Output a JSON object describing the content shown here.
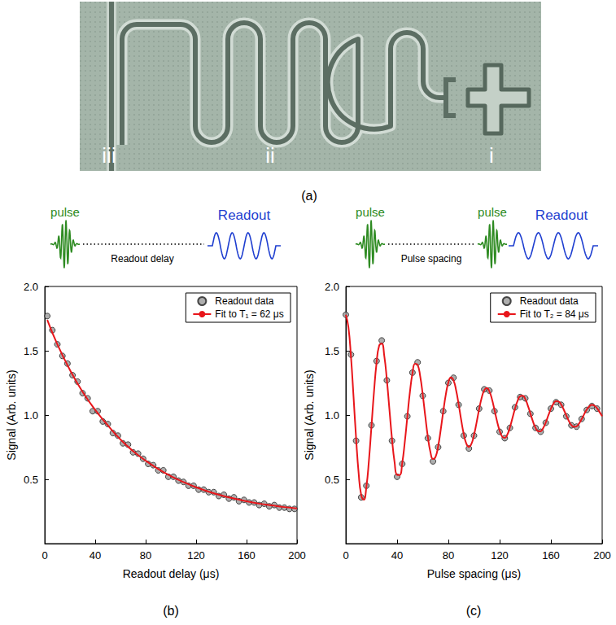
{
  "panel_a": {
    "labels": [
      "i",
      "ii",
      "iii"
    ],
    "caption": "(a)"
  },
  "chart_data": [
    {
      "type": "scatter",
      "panel": "(b)",
      "schematic": {
        "pulses": [
          "pulse"
        ],
        "gap": "Readout delay",
        "readout": "Readout"
      },
      "x_label": "Readout delay (μs)",
      "y_label": "Signal (Arb. units)",
      "xlim": [
        0,
        200
      ],
      "xticks": [
        0,
        40,
        80,
        120,
        160,
        200
      ],
      "ylim": [
        0,
        2
      ],
      "yticks": [
        0.5,
        {
          "value": 1,
          "label": "1.0"
        },
        1.5,
        {
          "value": 2,
          "label": "2.0"
        }
      ],
      "grid": false,
      "legend": "upper right",
      "series": [
        {
          "name": "Readout data",
          "type": "scatter",
          "marker": "circle",
          "color": "#9a9a9a",
          "x": [
            2,
            6,
            10,
            14,
            18,
            22,
            26,
            30,
            34,
            38,
            42,
            46,
            50,
            54,
            58,
            62,
            66,
            70,
            74,
            78,
            82,
            86,
            90,
            94,
            98,
            102,
            106,
            110,
            114,
            118,
            122,
            126,
            130,
            134,
            138,
            142,
            146,
            150,
            154,
            158,
            162,
            166,
            170,
            174,
            178,
            182,
            186,
            190,
            194,
            198
          ],
          "values": [
            1.77,
            1.66,
            1.55,
            1.46,
            1.4,
            1.31,
            1.26,
            1.17,
            1.13,
            1.03,
            1.03,
            0.95,
            0.93,
            0.86,
            0.84,
            0.78,
            0.77,
            0.71,
            0.7,
            0.66,
            0.62,
            0.61,
            0.57,
            0.57,
            0.52,
            0.52,
            0.49,
            0.48,
            0.45,
            0.45,
            0.42,
            0.42,
            0.4,
            0.4,
            0.37,
            0.38,
            0.35,
            0.36,
            0.33,
            0.34,
            0.32,
            0.32,
            0.3,
            0.31,
            0.29,
            0.3,
            0.28,
            0.28,
            0.27,
            0.27
          ]
        },
        {
          "name": "Fit to T₁ = 62 μs",
          "type": "line",
          "line_style": "solid",
          "color": "#e8161b",
          "x": [
            2,
            10,
            20,
            30,
            40,
            50,
            60,
            70,
            80,
            90,
            100,
            110,
            120,
            130,
            140,
            150,
            160,
            170,
            180,
            190,
            200
          ],
          "values": [
            1.74,
            1.55,
            1.35,
            1.18,
            1.04,
            0.92,
            0.81,
            0.72,
            0.645,
            0.58,
            0.525,
            0.479,
            0.438,
            0.404,
            0.375,
            0.351,
            0.329,
            0.311,
            0.297,
            0.284,
            0.274
          ]
        }
      ]
    },
    {
      "type": "scatter",
      "panel": "(c)",
      "schematic": {
        "pulses": [
          "pulse",
          "pulse"
        ],
        "gap": "Pulse spacing",
        "readout": "Readout"
      },
      "x_label": "Pulse spacing (μs)",
      "y_label": "Signal (Arb. units)",
      "xlim": [
        0,
        200
      ],
      "xticks": [
        0,
        40,
        80,
        120,
        160,
        200
      ],
      "ylim": [
        0,
        2
      ],
      "yticks": [
        0.5,
        {
          "value": 1,
          "label": "1.0"
        },
        1.5,
        {
          "value": 2,
          "label": "2.0"
        }
      ],
      "grid": false,
      "legend": "upper right",
      "series": [
        {
          "name": "Readout data",
          "type": "scatter",
          "marker": "circle",
          "color": "#9a9a9a",
          "x": [
            0,
            4,
            8,
            12,
            16,
            20,
            24,
            28,
            32,
            36,
            40,
            44,
            48,
            52,
            56,
            60,
            64,
            68,
            72,
            76,
            80,
            84,
            88,
            92,
            96,
            100,
            104,
            108,
            112,
            116,
            120,
            124,
            128,
            132,
            136,
            140,
            144,
            148,
            152,
            156,
            160,
            164,
            168,
            172,
            176,
            180,
            184,
            188,
            192,
            196
          ],
          "values": [
            1.78,
            1.47,
            0.8,
            0.36,
            0.45,
            0.92,
            1.42,
            1.58,
            1.27,
            0.8,
            0.52,
            0.62,
            0.99,
            1.33,
            1.41,
            1.15,
            0.82,
            0.64,
            0.75,
            1.03,
            1.25,
            1.29,
            1.08,
            0.84,
            0.74,
            0.84,
            1.05,
            1.2,
            1.19,
            1.03,
            0.87,
            0.82,
            0.9,
            1.06,
            1.14,
            1.13,
            1.01,
            0.9,
            0.87,
            0.94,
            1.05,
            1.1,
            1.08,
            0.99,
            0.92,
            0.91,
            0.97,
            1.04,
            1.07,
            1.05
          ]
        },
        {
          "name": "Fit to T₂ = 84 μs",
          "type": "line",
          "line_style": "solid",
          "color": "#e8161b",
          "x": [
            0,
            2,
            4,
            6,
            8,
            10,
            12,
            14,
            16,
            18,
            20,
            22,
            24,
            26,
            28,
            30,
            32,
            34,
            36,
            38,
            40,
            42,
            44,
            46,
            48,
            50,
            52,
            54,
            56,
            58,
            60,
            62,
            64,
            66,
            68,
            70,
            72,
            74,
            76,
            78,
            80,
            82,
            84,
            86,
            88,
            90,
            92,
            94,
            96,
            98,
            100,
            102,
            104,
            106,
            108,
            110,
            112,
            114,
            116,
            118,
            120,
            122,
            124,
            126,
            128,
            130,
            132,
            134,
            136,
            138,
            140,
            142,
            144,
            146,
            148,
            150,
            152,
            154,
            156,
            158,
            160,
            162,
            164,
            166,
            168,
            170,
            172,
            174,
            176,
            178,
            180,
            182,
            184,
            186,
            188,
            190,
            192,
            194,
            196,
            198,
            200
          ],
          "values": [
            1.78,
            1.684,
            1.454,
            1.144,
            0.82,
            0.547,
            0.377,
            0.341,
            0.439,
            0.645,
            0.913,
            1.185,
            1.409,
            1.539,
            1.555,
            1.459,
            1.275,
            1.045,
            0.816,
            0.635,
            0.535,
            0.534,
            0.626,
            0.79,
            0.987,
            1.179,
            1.325,
            1.399,
            1.39,
            1.303,
            1.159,
            0.989,
            0.83,
            0.712,
            0.658,
            0.675,
            0.756,
            0.883,
            1.027,
            1.159,
            1.253,
            1.292,
            1.27,
            1.195,
            1.085,
            0.962,
            0.853,
            0.778,
            0.752,
            0.776,
            0.845,
            0.941,
            1.045,
            1.135,
            1.193,
            1.211,
            1.184,
            1.123,
            1.039,
            0.951,
            0.878,
            0.832,
            0.822,
            0.848,
            0.904,
            0.976,
            1.05,
            1.11,
            1.146,
            1.15,
            1.124,
            1.074,
            1.012,
            0.95,
            0.901,
            0.875,
            0.874,
            0.899,
            0.943,
            0.997,
            1.048,
            1.088,
            1.108,
            1.105,
            1.082,
            1.043,
            0.997,
            0.954,
            0.922,
            0.908,
            0.912,
            0.934,
            0.968,
            1.007,
            1.043,
            1.068,
            1.079,
            1.073,
            1.053,
            1.023,
            0.99
          ]
        }
      ]
    }
  ]
}
